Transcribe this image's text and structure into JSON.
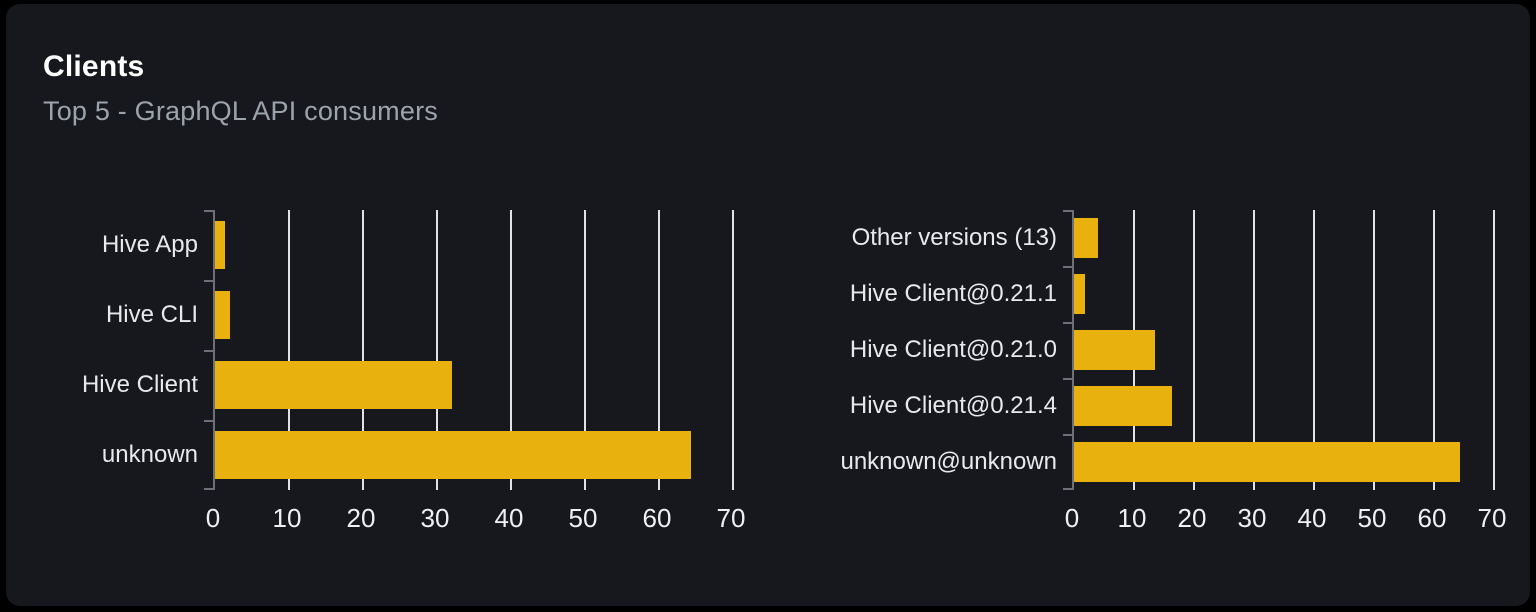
{
  "header": {
    "title": "Clients",
    "subtitle": "Top 5 - GraphQL API consumers"
  },
  "colors": {
    "page_bg": "#000000",
    "card_bg": "#16181d",
    "title_text": "#ffffff",
    "subtitle_text": "#9da3ad",
    "bar": "#e9b10e",
    "gridline": "#dfe3e8",
    "axis": "#6e7077",
    "category_label": "#e8e9eb",
    "tick_label": "#eef0f2"
  },
  "chart_data": [
    {
      "type": "bar",
      "orientation": "horizontal",
      "categories": [
        "Hive App",
        "Hive CLI",
        "Hive Client",
        "unknown"
      ],
      "values": [
        1.4,
        2,
        32,
        64.3
      ],
      "xlim": [
        0,
        70
      ],
      "xticks": [
        0,
        10,
        20,
        30,
        40,
        50,
        60,
        70
      ],
      "grid": true,
      "legend": "none"
    },
    {
      "type": "bar",
      "orientation": "horizontal",
      "categories": [
        "Other versions (13)",
        "Hive Client@0.21.1",
        "Hive Client@0.21.0",
        "Hive Client@0.21.4",
        "unknown@unknown"
      ],
      "values": [
        4,
        1.8,
        13.5,
        16.3,
        64.3
      ],
      "xlim": [
        0,
        70
      ],
      "xticks": [
        0,
        10,
        20,
        30,
        40,
        50,
        60,
        70
      ],
      "grid": true,
      "legend": "none"
    }
  ]
}
